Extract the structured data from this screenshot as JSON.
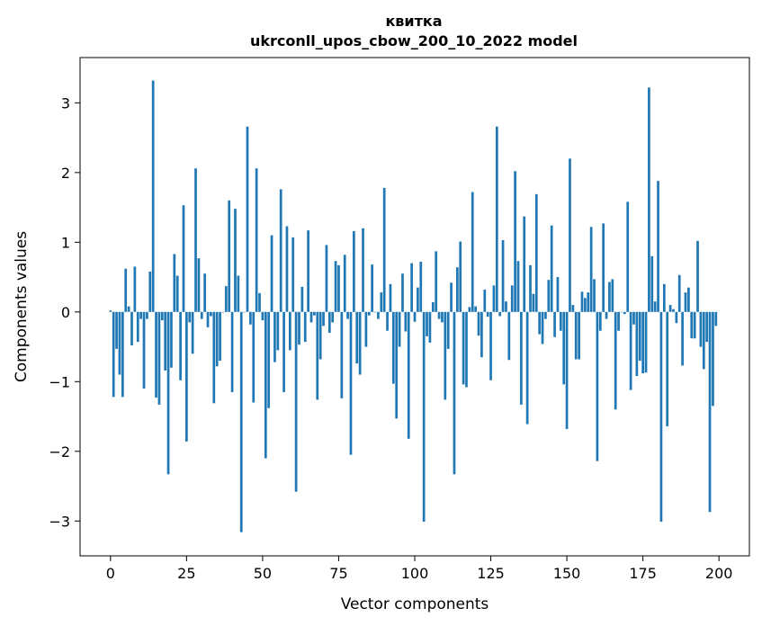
{
  "chart_data": {
    "type": "bar",
    "title": "квитка",
    "subtitle": "ukrconll_upos_cbow_200_10_2022 model",
    "xlabel": "Vector components",
    "ylabel": "Components values",
    "xlim": [
      -10,
      210
    ],
    "ylim": [
      -3.5,
      3.65
    ],
    "xticks": [
      0,
      25,
      50,
      75,
      100,
      125,
      150,
      175,
      200
    ],
    "yticks": [
      -3,
      -2,
      -1,
      0,
      1,
      2,
      3
    ],
    "bar_color": "#1f77b4",
    "grid": false,
    "x": [
      0,
      1,
      2,
      3,
      4,
      5,
      6,
      7,
      8,
      9,
      10,
      11,
      12,
      13,
      14,
      15,
      16,
      17,
      18,
      19,
      20,
      21,
      22,
      23,
      24,
      25,
      26,
      27,
      28,
      29,
      30,
      31,
      32,
      33,
      34,
      35,
      36,
      37,
      38,
      39,
      40,
      41,
      42,
      43,
      44,
      45,
      46,
      47,
      48,
      49,
      50,
      51,
      52,
      53,
      54,
      55,
      56,
      57,
      58,
      59,
      60,
      61,
      62,
      63,
      64,
      65,
      66,
      67,
      68,
      69,
      70,
      71,
      72,
      73,
      74,
      75,
      76,
      77,
      78,
      79,
      80,
      81,
      82,
      83,
      84,
      85,
      86,
      87,
      88,
      89,
      90,
      91,
      92,
      93,
      94,
      95,
      96,
      97,
      98,
      99,
      100,
      101,
      102,
      103,
      104,
      105,
      106,
      107,
      108,
      109,
      110,
      111,
      112,
      113,
      114,
      115,
      116,
      117,
      118,
      119,
      120,
      121,
      122,
      123,
      124,
      125,
      126,
      127,
      128,
      129,
      130,
      131,
      132,
      133,
      134,
      135,
      136,
      137,
      138,
      139,
      140,
      141,
      142,
      143,
      144,
      145,
      146,
      147,
      148,
      149,
      150,
      151,
      152,
      153,
      154,
      155,
      156,
      157,
      158,
      159,
      160,
      161,
      162,
      163,
      164,
      165,
      166,
      167,
      168,
      169,
      170,
      171,
      172,
      173,
      174,
      175,
      176,
      177,
      178,
      179,
      180,
      181,
      182,
      183,
      184,
      185,
      186,
      187,
      188,
      189,
      190,
      191,
      192,
      193,
      194,
      195,
      196,
      197,
      198,
      199
    ],
    "values": [
      0.02,
      -1.22,
      -0.53,
      -0.9,
      -1.22,
      0.62,
      0.08,
      -0.48,
      0.65,
      -0.43,
      -0.1,
      -1.1,
      -0.1,
      0.58,
      3.32,
      -1.23,
      -1.33,
      -0.12,
      -0.84,
      -2.33,
      -0.8,
      0.83,
      0.52,
      -0.98,
      1.53,
      -1.86,
      -0.15,
      -0.6,
      2.06,
      0.77,
      -0.1,
      0.55,
      -0.22,
      -0.06,
      -1.31,
      -0.78,
      -0.7,
      0.0,
      0.37,
      1.6,
      -1.15,
      1.48,
      0.52,
      -3.16,
      0.0,
      2.66,
      -0.18,
      -1.3,
      2.06,
      0.27,
      -0.12,
      -2.1,
      -1.38,
      1.1,
      -0.72,
      -0.55,
      1.76,
      -1.15,
      1.23,
      -0.55,
      1.07,
      -2.58,
      -0.47,
      0.36,
      -0.43,
      1.17,
      -0.15,
      -0.05,
      -1.26,
      -0.68,
      -0.2,
      0.96,
      -0.3,
      -0.15,
      0.73,
      0.67,
      -1.24,
      0.82,
      -0.1,
      -2.05,
      1.16,
      -0.74,
      -0.9,
      1.2,
      -0.5,
      -0.05,
      0.68,
      0.0,
      -0.1,
      0.28,
      1.78,
      -0.27,
      0.4,
      -1.03,
      -1.53,
      -0.5,
      0.55,
      -0.28,
      -1.82,
      0.7,
      -0.14,
      0.35,
      0.72,
      -3.01,
      -0.35,
      -0.44,
      0.14,
      0.87,
      -0.1,
      -0.15,
      -1.26,
      -0.53,
      0.42,
      -2.33,
      0.64,
      1.01,
      -1.04,
      -1.08,
      0.07,
      1.72,
      0.08,
      -0.34,
      -0.65,
      0.32,
      -0.07,
      -0.98,
      0.38,
      2.66,
      -0.06,
      1.03,
      0.15,
      -0.69,
      0.38,
      2.02,
      0.73,
      -1.33,
      1.37,
      -1.61,
      0.67,
      0.26,
      1.69,
      -0.32,
      -0.46,
      -0.1,
      0.46,
      1.24,
      -0.36,
      0.5,
      -0.27,
      -1.04,
      -1.68,
      2.2,
      0.1,
      -0.68,
      -0.68,
      0.29,
      0.2,
      0.28,
      1.22,
      0.47,
      -2.14,
      -0.27,
      1.27,
      -0.1,
      0.43,
      0.47,
      -1.4,
      -0.27,
      0.0,
      -0.03,
      1.58,
      -1.12,
      -0.18,
      -0.92,
      -0.7,
      -0.88,
      -0.87,
      3.22,
      0.8,
      0.15,
      1.88,
      -3.01,
      0.4,
      -1.64,
      0.1,
      0.04,
      -0.16,
      0.53,
      -0.77,
      0.28,
      0.35,
      -0.38,
      -0.38,
      1.02,
      -0.5,
      -0.82,
      -0.43,
      -2.87,
      -1.35,
      -0.2
    ]
  }
}
